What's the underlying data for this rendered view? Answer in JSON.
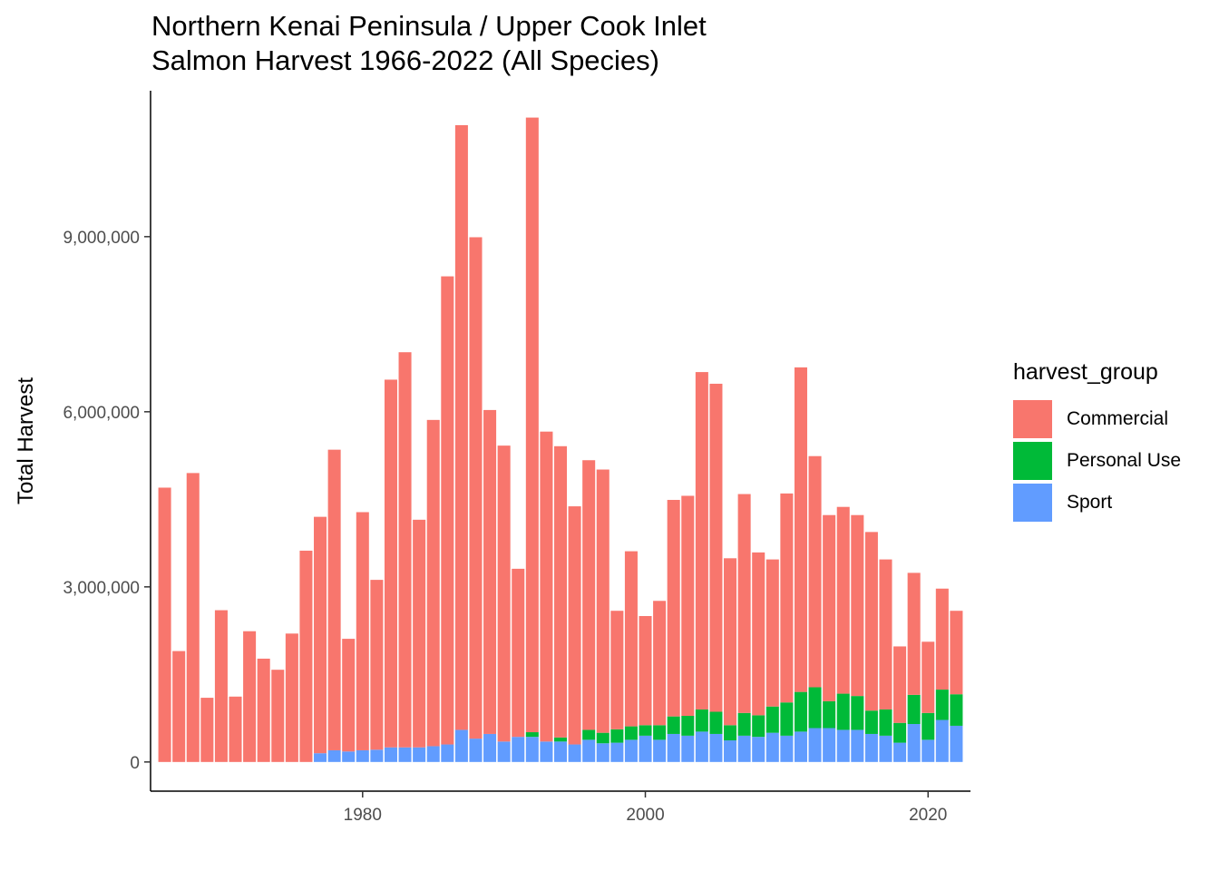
{
  "chart_data": {
    "type": "bar",
    "stacked": true,
    "title_lines": [
      "Northern Kenai Peninsula / Upper Cook Inlet",
      "Salmon Harvest 1966-2022 (All Species)"
    ],
    "xlabel": "",
    "ylabel": "Total Harvest",
    "xlim": [
      1965,
      2023
    ],
    "ylim": [
      -500000,
      11500000
    ],
    "x_ticks": [
      1980,
      2000,
      2020
    ],
    "x_tick_labels": [
      "1980",
      "2000",
      "2020"
    ],
    "y_ticks": [
      0,
      3000000,
      6000000,
      9000000
    ],
    "y_tick_labels": [
      "0",
      "3,000,000",
      "6,000,000",
      "9,000,000"
    ],
    "grid": false,
    "legend": {
      "title": "harvest_group",
      "position": "right"
    },
    "x": [
      1966,
      1967,
      1968,
      1969,
      1970,
      1971,
      1972,
      1973,
      1974,
      1975,
      1976,
      1977,
      1978,
      1979,
      1980,
      1981,
      1982,
      1983,
      1984,
      1985,
      1986,
      1987,
      1988,
      1989,
      1990,
      1991,
      1992,
      1993,
      1994,
      1995,
      1996,
      1997,
      1998,
      1999,
      2000,
      2001,
      2002,
      2003,
      2004,
      2005,
      2006,
      2007,
      2008,
      2009,
      2010,
      2011,
      2012,
      2013,
      2014,
      2015,
      2016,
      2017,
      2018,
      2019,
      2020,
      2021,
      2022
    ],
    "series": [
      {
        "name": "Sport",
        "color": "#619CFF",
        "values": [
          0,
          0,
          0,
          0,
          0,
          0,
          0,
          0,
          0,
          0,
          0,
          150000,
          200000,
          180000,
          200000,
          210000,
          250000,
          250000,
          250000,
          270000,
          300000,
          550000,
          400000,
          480000,
          350000,
          430000,
          430000,
          350000,
          350000,
          300000,
          380000,
          320000,
          330000,
          380000,
          450000,
          380000,
          480000,
          450000,
          520000,
          480000,
          370000,
          450000,
          430000,
          500000,
          450000,
          520000,
          580000,
          580000,
          550000,
          550000,
          480000,
          450000,
          330000,
          650000,
          380000,
          720000,
          620000
        ]
      },
      {
        "name": "Personal Use",
        "color": "#00BA38",
        "values": [
          0,
          0,
          0,
          0,
          0,
          0,
          0,
          0,
          0,
          0,
          0,
          0,
          0,
          0,
          0,
          0,
          0,
          0,
          0,
          0,
          0,
          0,
          0,
          0,
          0,
          0,
          80000,
          0,
          70000,
          0,
          170000,
          180000,
          230000,
          230000,
          180000,
          250000,
          300000,
          340000,
          380000,
          380000,
          260000,
          390000,
          370000,
          450000,
          570000,
          680000,
          700000,
          460000,
          620000,
          580000,
          400000,
          450000,
          340000,
          500000,
          460000,
          520000,
          540000
        ]
      },
      {
        "name": "Commercial",
        "color": "#F8766D",
        "values": [
          4700000,
          1900000,
          4950000,
          1100000,
          2600000,
          1120000,
          2240000,
          1770000,
          1580000,
          2200000,
          3620000,
          4050000,
          5150000,
          1930000,
          4080000,
          2910000,
          6300000,
          6770000,
          3900000,
          5590000,
          8020000,
          10360000,
          8590000,
          5550000,
          5070000,
          2880000,
          10530000,
          5310000,
          4990000,
          4080000,
          4620000,
          4510000,
          2030000,
          3000000,
          1870000,
          2130000,
          3710000,
          3770000,
          5780000,
          5620000,
          2860000,
          3750000,
          2790000,
          2520000,
          3580000,
          5560000,
          3960000,
          3190000,
          3200000,
          3100000,
          3060000,
          2570000,
          1310000,
          2090000,
          1220000,
          1730000,
          1430000
        ]
      }
    ]
  }
}
